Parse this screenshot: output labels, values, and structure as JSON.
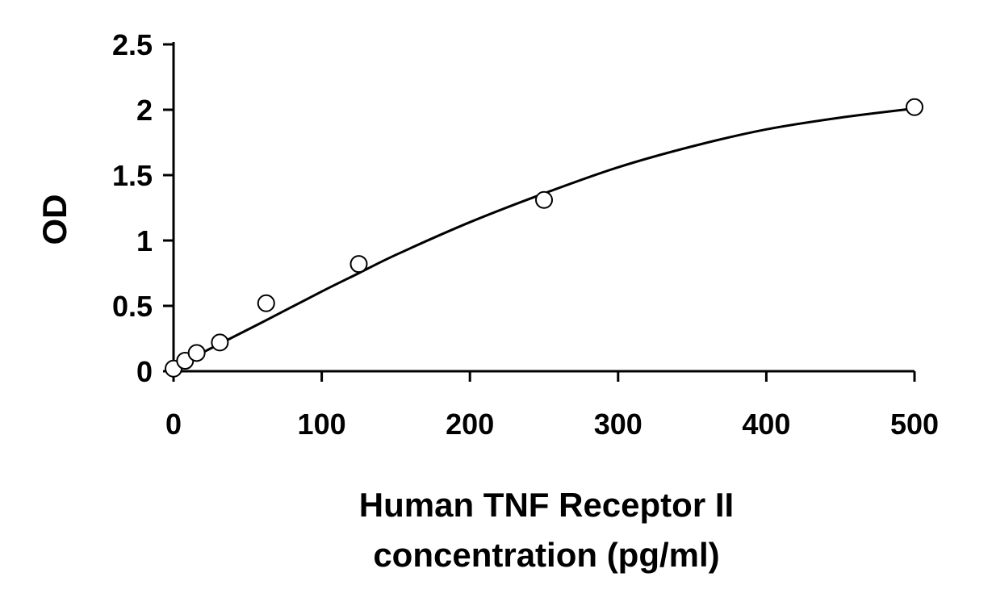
{
  "chart_data": {
    "type": "scatter",
    "title": "",
    "xlabel": [
      "Human TNF Receptor II",
      "concentration (pg/ml)"
    ],
    "ylabel": "OD",
    "xlim": [
      0,
      500
    ],
    "ylim": [
      0,
      2.5
    ],
    "x_ticks": [
      "0",
      "100",
      "200",
      "300",
      "400",
      "500"
    ],
    "y_ticks": [
      "0",
      "0.5",
      "1",
      "1.5",
      "2",
      "2.5"
    ],
    "grid": false,
    "series": [
      {
        "x": [
          0,
          7.8,
          15.6,
          31.25,
          62.5,
          125,
          250,
          500
        ],
        "y": [
          0.02,
          0.08,
          0.14,
          0.22,
          0.52,
          0.82,
          1.31,
          2.02
        ],
        "marker": "open-circle",
        "color": "#000000"
      }
    ],
    "fit_curve": {
      "x": [
        0,
        15.6,
        31.25,
        62.5,
        100,
        125,
        150,
        200,
        250,
        300,
        350,
        400,
        450,
        500
      ],
      "y": [
        0.03,
        0.12,
        0.21,
        0.39,
        0.61,
        0.75,
        0.89,
        1.14,
        1.36,
        1.56,
        1.72,
        1.85,
        1.94,
        2.01
      ]
    }
  }
}
